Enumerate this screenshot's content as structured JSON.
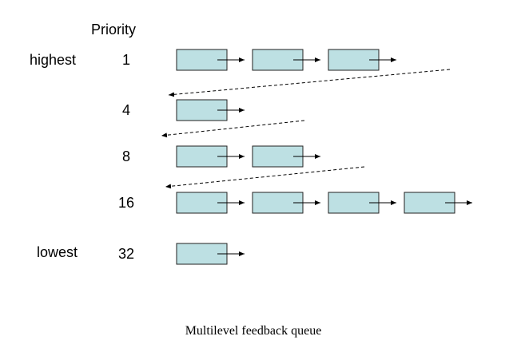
{
  "header": {
    "priority_label": "Priority",
    "highest_label": "highest",
    "lowest_label": "lowest"
  },
  "colors": {
    "node_fill": "#bde0e3",
    "node_stroke": "#222222",
    "line": "#000000"
  },
  "queues": [
    {
      "priority": "1",
      "node_count": 3
    },
    {
      "priority": "4",
      "node_count": 1
    },
    {
      "priority": "8",
      "node_count": 2
    },
    {
      "priority": "16",
      "node_count": 4
    },
    {
      "priority": "32",
      "node_count": 1
    }
  ],
  "caption": "Multilevel feedback queue"
}
